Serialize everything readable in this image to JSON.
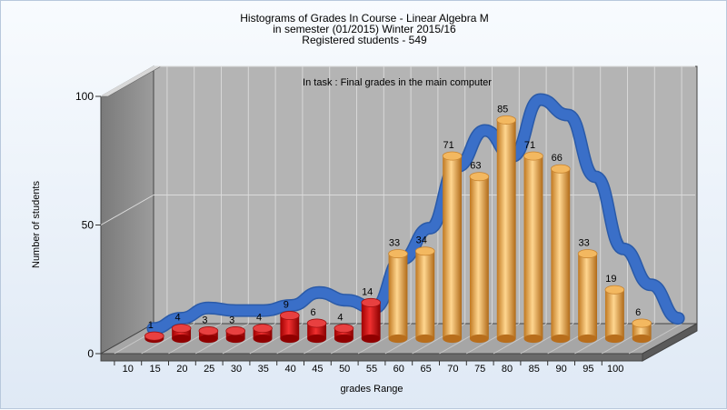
{
  "title_lines": [
    "Histograms of Grades  In Course - Linear Algebra M",
    "in semester  (01/2015) Winter 2015/16",
    "Registered students - 549"
  ],
  "colors": {
    "failing_bar": "#cc1010",
    "passing_bar": "#e8a040",
    "trend_line": "#3a6fc8",
    "plot_wall": "#b3b3b3",
    "side_wall": "#8a8a8a",
    "floor": "#9a9a9a"
  },
  "chart_data": {
    "type": "bar",
    "subtitle": "In task : Final grades in the main computer",
    "xlabel": "grades Range",
    "ylabel": "Number of students",
    "ylim": [
      0,
      100
    ],
    "yticks": [
      0,
      50,
      100
    ],
    "categories": [
      "10",
      "15",
      "20",
      "25",
      "30",
      "35",
      "40",
      "45",
      "50",
      "55",
      "60",
      "65",
      "70",
      "75",
      "80",
      "85",
      "90",
      "95",
      "100"
    ],
    "series": [
      {
        "values": [
          1,
          4,
          3,
          3,
          4,
          9,
          6,
          4,
          14,
          33,
          34,
          71,
          63,
          85,
          71,
          66,
          33,
          19,
          6
        ]
      }
    ],
    "bar_color_groups": [
      "fail",
      "fail",
      "fail",
      "fail",
      "fail",
      "fail",
      "fail",
      "fail",
      "fail",
      "pass",
      "pass",
      "pass",
      "pass",
      "pass",
      "pass",
      "pass",
      "pass",
      "pass",
      "pass"
    ],
    "trend_line": [
      1,
      5,
      9,
      8,
      8,
      10,
      15,
      12,
      9,
      28,
      40,
      64,
      78,
      68,
      90,
      84,
      60,
      32,
      18,
      5
    ]
  }
}
